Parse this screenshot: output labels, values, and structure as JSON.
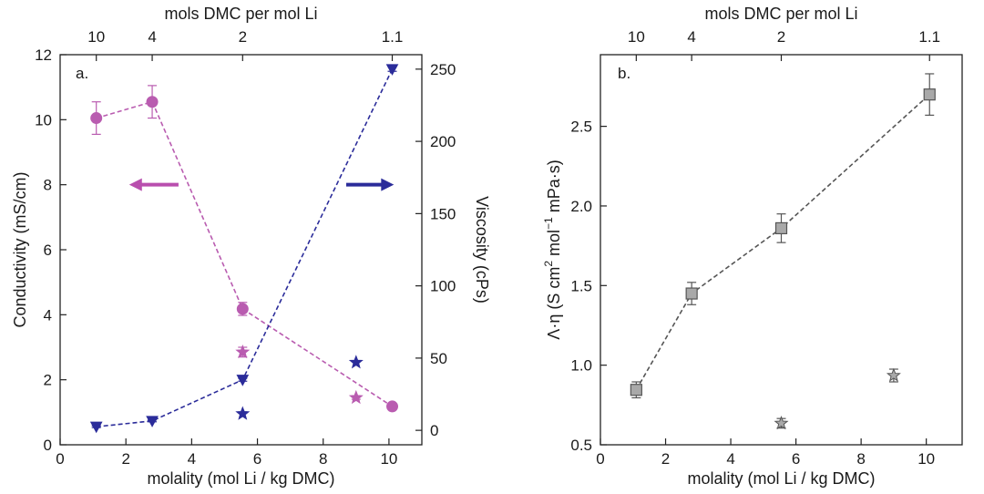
{
  "chart_data": [
    {
      "panel": "a.",
      "type": "scatter",
      "xlabel": "molality (mol Li / kg DMC)",
      "top_xlabel": "mols DMC per mol Li",
      "ylabel_left": "Conductivity (mS/cm)",
      "ylabel_right": "Viscosity (cPs)",
      "xlim": [
        0,
        11
      ],
      "ylim_left": [
        0,
        12
      ],
      "ylim_right": [
        -10,
        260
      ],
      "x_ticks": [
        "0",
        "2",
        "4",
        "6",
        "8",
        "10"
      ],
      "y_ticks_left": [
        "0",
        "2",
        "4",
        "6",
        "8",
        "10",
        "12"
      ],
      "y_ticks_right": [
        "0",
        "50",
        "100",
        "150",
        "200",
        "250"
      ],
      "top_ticks": [
        {
          "label": "10",
          "x": 1.1
        },
        {
          "label": "4",
          "x": 2.8
        },
        {
          "label": "2",
          "x": 5.55
        },
        {
          "label": "1.1",
          "x": 10.1
        }
      ],
      "series": [
        {
          "role": "conductivity",
          "axis": "left",
          "marker": "circle",
          "color": "#b95cb0",
          "connected": true,
          "x": [
            1.1,
            2.8,
            5.55,
            10.1
          ],
          "y": [
            10.05,
            10.55,
            4.18,
            1.18
          ],
          "err": [
            0.5,
            0.5,
            0.2,
            0.05
          ]
        },
        {
          "role": "conductivity-star",
          "axis": "left",
          "marker": "star",
          "color": "#b95cb0",
          "connected": false,
          "x": [
            5.55,
            9.0
          ],
          "y": [
            2.85,
            1.45
          ],
          "err": [
            0.15,
            0.05
          ]
        },
        {
          "role": "viscosity",
          "axis": "right",
          "marker": "triangle-down",
          "color": "#2b2c9a",
          "connected": true,
          "x": [
            1.1,
            2.8,
            5.55,
            10.1
          ],
          "y": [
            2.5,
            6.5,
            35.0,
            250.0
          ],
          "err": [
            0.6,
            0.6,
            1.0,
            1.5
          ]
        },
        {
          "role": "viscosity-star",
          "axis": "right",
          "marker": "star",
          "color": "#2b2c9a",
          "connected": false,
          "x": [
            5.55,
            9.0
          ],
          "y": [
            11.5,
            47.0
          ],
          "err": [
            0,
            0
          ]
        }
      ],
      "arrows": [
        {
          "direction": "left",
          "color": "#b94fae",
          "x": [
            2.1,
            3.6
          ],
          "y_left": 8.0
        },
        {
          "direction": "right",
          "color": "#2b2c9a",
          "x": [
            8.7,
            10.15
          ],
          "y_left": 8.0
        }
      ]
    },
    {
      "panel": "b.",
      "type": "scatter",
      "xlabel": "molality (mol Li / kg DMC)",
      "top_xlabel": "mols DMC per mol Li",
      "ylabel_parts": [
        "Λ·η (S cm",
        "2",
        " mol",
        "−1",
        " mPa·s)"
      ],
      "xlim": [
        0,
        11.1
      ],
      "ylim": [
        0.5,
        2.95
      ],
      "x_ticks": [
        "0",
        "2",
        "4",
        "6",
        "8",
        "10"
      ],
      "y_ticks": [
        "0.5",
        "1.0",
        "1.5",
        "2.0",
        "2.5"
      ],
      "top_ticks": [
        {
          "label": "10",
          "x": 1.1
        },
        {
          "label": "4",
          "x": 2.8
        },
        {
          "label": "2",
          "x": 5.55
        },
        {
          "label": "1.1",
          "x": 10.1
        }
      ],
      "series": [
        {
          "role": "walden-product",
          "marker": "square",
          "color": "#a9a9a9",
          "edge": "#555555",
          "connected": true,
          "x": [
            1.1,
            2.8,
            5.55,
            10.1
          ],
          "y": [
            0.845,
            1.45,
            1.86,
            2.7
          ],
          "err": [
            0.05,
            0.07,
            0.09,
            0.13
          ]
        },
        {
          "role": "walden-product-star",
          "marker": "star",
          "color": "#a9a9a9",
          "edge": "#555555",
          "connected": false,
          "x": [
            5.55,
            9.0
          ],
          "y": [
            0.635,
            0.935
          ],
          "err": [
            0.03,
            0.04
          ]
        }
      ]
    }
  ]
}
